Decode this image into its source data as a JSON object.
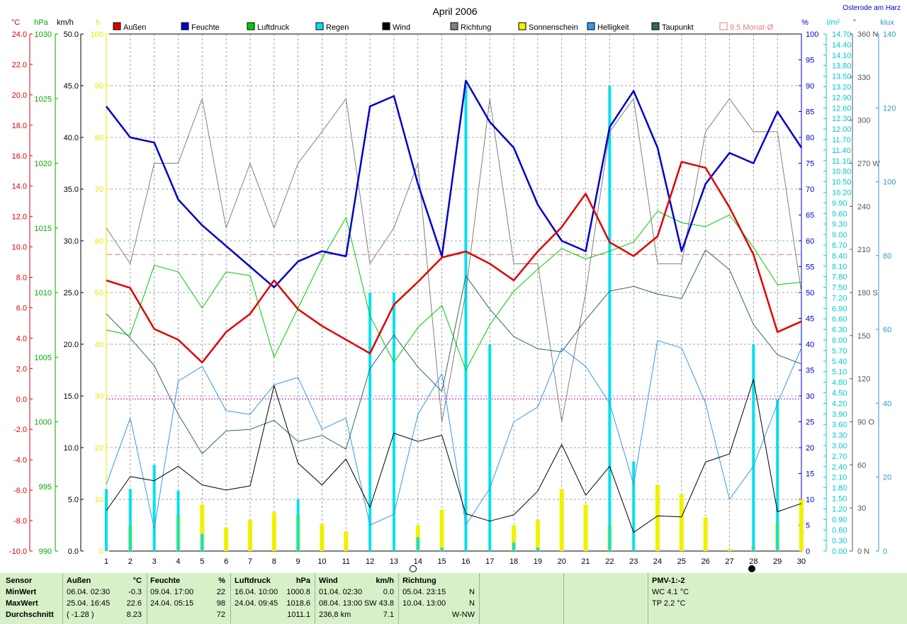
{
  "header": {
    "location": "Osterode am Harz"
  },
  "chart_data": {
    "type": "line",
    "title": "April 2006",
    "x": [
      1,
      2,
      3,
      4,
      5,
      6,
      7,
      8,
      9,
      10,
      11,
      12,
      13,
      14,
      15,
      16,
      17,
      18,
      19,
      20,
      21,
      22,
      23,
      24,
      25,
      26,
      27,
      28,
      29,
      30
    ],
    "legend": [
      {
        "label": "Außen",
        "color": "#e00000"
      },
      {
        "label": "Feuchte",
        "color": "#0000cc"
      },
      {
        "label": "Luftdruck",
        "color": "#00cc00"
      },
      {
        "label": "Regen",
        "color": "#00e0ee"
      },
      {
        "label": "Wind",
        "color": "#000000"
      },
      {
        "label": "Richtung",
        "color": "#808080"
      },
      {
        "label": "Sonnenschein",
        "color": "#f0f000"
      },
      {
        "label": "Helligkeit",
        "color": "#3399ee"
      },
      {
        "label": "Taupunkt",
        "color": "#336666"
      },
      {
        "label": "9.5 Monat-Ø",
        "color": "#e08080"
      }
    ],
    "axes": {
      "temp": {
        "unit": "°C",
        "color": "#e00000",
        "min": -10,
        "max": 24,
        "ticks": [
          "24.0",
          "22.0",
          "20.0",
          "18.0",
          "16.0",
          "14.0",
          "12.0",
          "10.0",
          "8.0",
          "6.0",
          "4.0",
          "2.0",
          "0.0",
          "-2.0",
          "-4.0",
          "-6.0",
          "-8.0",
          "-10.0"
        ]
      },
      "pressure": {
        "unit": "hPa",
        "color": "#00aa00",
        "min": 990,
        "max": 1030,
        "ticks": [
          "1030",
          "1025",
          "1020",
          "1015",
          "1010",
          "1005",
          "1000",
          "995",
          "990"
        ]
      },
      "wind": {
        "unit": "km/h",
        "color": "#000000",
        "min": 0,
        "max": 50,
        "ticks": [
          "50.0",
          "45.0",
          "40.0",
          "35.0",
          "30.0",
          "25.0",
          "20.0",
          "15.0",
          "10.0",
          "5.0",
          "0.0"
        ]
      },
      "sun": {
        "unit": "h",
        "color": "#e8e800",
        "min": 0,
        "max": 100,
        "ticks": [
          "100",
          "90",
          "80",
          "70",
          "60",
          "50",
          "40",
          "30",
          "20",
          "10",
          "0"
        ]
      },
      "humidity": {
        "unit": "%",
        "color": "#0000cc",
        "min": 0,
        "max": 100,
        "ticks": [
          "100",
          "95",
          "90",
          "85",
          "80",
          "75",
          "70",
          "65",
          "60",
          "55",
          "50",
          "45",
          "40",
          "35",
          "30",
          "25",
          "20",
          "15",
          "10",
          "5",
          "0"
        ]
      },
      "rain": {
        "unit": "l/m²",
        "color": "#00cccc",
        "min": 0,
        "max": 15,
        "ticks": [
          "14.70",
          "14.40",
          "14.10",
          "13.80",
          "13.50",
          "13.20",
          "12.90",
          "12.60",
          "12.30",
          "12.00",
          "11.70",
          "11.40",
          "11.10",
          "10.80",
          "10.50",
          "10.20",
          "9.90",
          "9.60",
          "9.30",
          "9.00",
          "8.70",
          "8.40",
          "8.10",
          "7.80",
          "7.50",
          "7.20",
          "6.90",
          "6.60",
          "6.30",
          "6.00",
          "5.70",
          "5.40",
          "5.10",
          "4.80",
          "4.50",
          "4.20",
          "3.90",
          "3.60",
          "3.30",
          "3.00",
          "2.70",
          "2.40",
          "2.10",
          "1.80",
          "1.50",
          "1.20",
          "0.90",
          "0.60",
          "0.30",
          "0.00"
        ]
      },
      "direction": {
        "unit": "°",
        "color": "#555555",
        "min": 0,
        "max": 360,
        "ticks": [
          "360 N",
          "330",
          "300",
          "270 W",
          "240",
          "210",
          "180 S",
          "150",
          "120",
          "90  O",
          "60",
          "30",
          "0  N"
        ]
      },
      "brightness": {
        "unit": "klux",
        "color": "#3399cc",
        "min": 0,
        "max": 140,
        "ticks": [
          "140",
          "120",
          "100",
          "80",
          "60",
          "40",
          "20",
          "0"
        ]
      }
    },
    "series": [
      {
        "name": "Außen",
        "axis": "temp",
        "values": [
          7.8,
          7.3,
          4.6,
          3.9,
          2.4,
          4.4,
          5.6,
          7.8,
          5.9,
          4.8,
          3.9,
          3.0,
          6.2,
          7.7,
          9.3,
          9.7,
          8.9,
          7.8,
          9.7,
          11.3,
          13.5,
          10.3,
          9.4,
          10.7,
          15.6,
          15.2,
          12.6,
          9.5,
          4.4,
          5.1
        ]
      },
      {
        "name": "Feuchte",
        "axis": "humidity",
        "values": [
          86,
          80,
          79,
          68,
          63,
          59,
          55,
          51,
          56,
          58,
          57,
          86,
          88,
          71,
          57,
          91,
          83,
          78,
          67,
          60,
          58,
          82,
          89,
          78,
          58,
          71,
          77,
          75,
          85,
          78
        ]
      },
      {
        "name": "Luftdruck",
        "axis": "pressure",
        "values": [
          1007.1,
          1006.7,
          1012.1,
          1011.6,
          1008.8,
          1011.6,
          1011.3,
          1005.0,
          1008.8,
          1012.6,
          1015.8,
          1008.2,
          1004.6,
          1007.3,
          1009.0,
          1004.0,
          1007.5,
          1010.1,
          1011.8,
          1013.4,
          1012.6,
          1013.2,
          1013.9,
          1016.3,
          1015.4,
          1015.1,
          1016.0,
          1013.5,
          1010.6,
          1010.8
        ]
      },
      {
        "name": "Wind",
        "axis": "wind",
        "values": [
          3.9,
          7.2,
          6.8,
          8.2,
          6.4,
          5.9,
          6.3,
          16.0,
          8.5,
          6.4,
          8.9,
          4.2,
          11.4,
          10.6,
          11.2,
          3.6,
          2.9,
          3.5,
          5.8,
          10.3,
          5.4,
          8.2,
          1.8,
          3.4,
          3.3,
          8.6,
          9.4,
          16.6,
          3.8,
          4.6
        ]
      },
      {
        "name": "Richtung",
        "axis": "direction",
        "values": [
          225,
          200,
          270,
          270,
          315,
          225,
          270,
          225,
          270,
          292,
          315,
          200,
          225,
          270,
          90,
          180,
          315,
          200,
          200,
          90,
          180,
          292,
          315,
          200,
          200,
          292,
          315,
          292,
          292,
          180
        ]
      },
      {
        "name": "Helligkeit",
        "axis": "brightness",
        "values": [
          18,
          36,
          6,
          46,
          50,
          38,
          37,
          45,
          47,
          33,
          36,
          7,
          10,
          37,
          48,
          7,
          17,
          35,
          39,
          55,
          50,
          40,
          18,
          57,
          55,
          40,
          14,
          23,
          40,
          55
        ]
      },
      {
        "name": "Taupunkt",
        "axis": "temp",
        "values": [
          5.6,
          4.0,
          2.2,
          -1.0,
          -3.6,
          -2.1,
          -2.0,
          -1.4,
          -2.8,
          -2.4,
          -3.3,
          2.0,
          4.2,
          2.1,
          0.5,
          8.1,
          5.9,
          4.1,
          3.3,
          3.1,
          5.2,
          7.1,
          7.4,
          6.9,
          6.6,
          9.8,
          8.5,
          4.9,
          2.9,
          2.3
        ]
      }
    ],
    "rain_values": [
      1.8,
      1.8,
      2.5,
      1.75,
      0.5,
      0,
      0,
      0,
      1.5,
      0,
      0,
      7.5,
      7.5,
      0.4,
      0.1,
      13.5,
      6.0,
      0.25,
      0.1,
      0,
      0,
      13.5,
      2.6,
      0,
      0,
      0,
      0,
      6.0,
      4.4,
      0
    ],
    "sun_values": [
      0,
      5,
      0,
      7,
      9,
      4.5,
      6,
      7.5,
      7,
      5.2,
      3.8,
      0,
      0,
      5,
      8,
      0,
      0,
      5,
      6,
      12,
      9,
      5,
      0,
      12.8,
      11,
      6.5,
      0.4,
      1,
      5.5,
      10
    ],
    "month_avg": {
      "label": "9.5 Monat-Ø",
      "value": 9.5
    },
    "zero_line": {
      "value": 0
    }
  },
  "table": {
    "sensor": {
      "title": "Sensor",
      "min": "MinWert",
      "max": "MaxWert",
      "avg": "Durchschnitt"
    },
    "aussen": {
      "title": "Außen",
      "unit": "°C",
      "min_time": "06.04.  02:30",
      "min_val": "-0.3",
      "max_time": "25.04.  16:45",
      "max_val": "22.6",
      "avg_extra": "( -1.28 )",
      "avg_val": "8.23"
    },
    "feuchte": {
      "title": "Feuchte",
      "unit": "%",
      "min_time": "09.04.  17:00",
      "min_val": "22",
      "max_time": "24.04.  05:15",
      "max_val": "98",
      "avg_val": "72"
    },
    "luftdruck": {
      "title": "Luftdruck",
      "unit": "hPa",
      "min_time": "16.04.  10:00",
      "min_val": "1000.8",
      "max_time": "24.04.  09:45",
      "max_val": "1018.6",
      "avg_val": "1011.1"
    },
    "wind": {
      "title": "Wind",
      "unit": "km/h",
      "min_time": "01.04.  02:30",
      "min_val": "0.0",
      "max_time": "08.04.  13:00",
      "max_val": "SW 43.8",
      "avg_extra": "236,8 km",
      "avg_val": "7.1"
    },
    "richtung": {
      "title": "Richtung",
      "min_time": "05.04.  23:15",
      "min_val": "N",
      "max_time": "10.04.  13:00",
      "max_val": "N",
      "avg_val": "W-NW"
    },
    "pmv": {
      "title": "PMV-1:-2",
      "wc": "WC 4.1 °C",
      "tp": "TP 2.2 °C"
    }
  }
}
